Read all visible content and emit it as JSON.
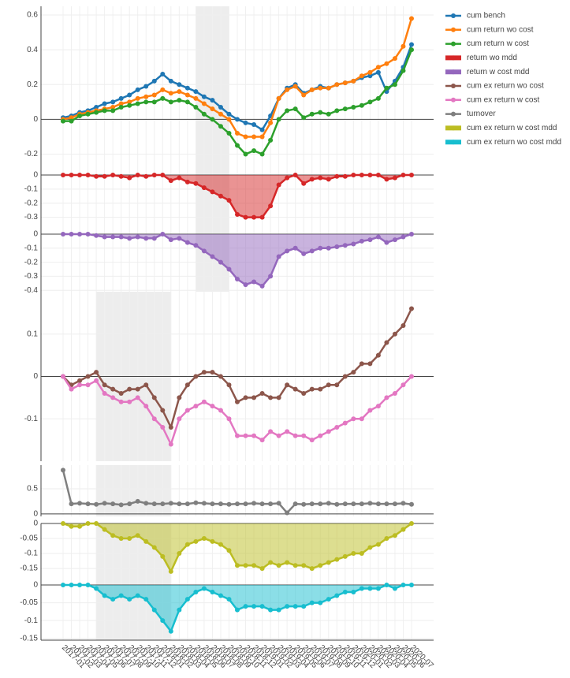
{
  "chart_data": [
    {
      "type": "line",
      "ylim": [
        -0.32,
        0.65
      ],
      "yticks": [
        -0.2,
        0,
        0.2,
        0.4,
        0.6
      ],
      "grid": true,
      "highlight": [
        "2018-05",
        "2018-09"
      ],
      "series": [
        {
          "name": "cum bench",
          "color": "#1f77b4",
          "values": [
            0.01,
            0.02,
            0.04,
            0.05,
            0.07,
            0.09,
            0.1,
            0.12,
            0.14,
            0.17,
            0.19,
            0.22,
            0.26,
            0.22,
            0.2,
            0.18,
            0.16,
            0.13,
            0.11,
            0.07,
            0.03,
            0.0,
            -0.02,
            -0.03,
            -0.06,
            0.02,
            0.12,
            0.18,
            0.2,
            0.15,
            0.17,
            0.19,
            0.18,
            0.2,
            0.21,
            0.22,
            0.24,
            0.25,
            0.27,
            0.16,
            0.22,
            0.3,
            0.43
          ]
        },
        {
          "name": "cum return wo cost",
          "color": "#ff7f0e",
          "values": [
            0.0,
            0.01,
            0.03,
            0.04,
            0.05,
            0.06,
            0.07,
            0.09,
            0.1,
            0.12,
            0.13,
            0.14,
            0.17,
            0.15,
            0.16,
            0.14,
            0.12,
            0.09,
            0.06,
            0.03,
            0.0,
            -0.08,
            -0.1,
            -0.1,
            -0.1,
            -0.02,
            0.12,
            0.17,
            0.19,
            0.14,
            0.17,
            0.18,
            0.18,
            0.2,
            0.21,
            0.22,
            0.25,
            0.27,
            0.3,
            0.32,
            0.35,
            0.42,
            0.58
          ]
        },
        {
          "name": "cum return w cost",
          "color": "#2ca02c",
          "values": [
            -0.01,
            -0.01,
            0.02,
            0.03,
            0.04,
            0.05,
            0.05,
            0.07,
            0.08,
            0.09,
            0.1,
            0.1,
            0.12,
            0.1,
            0.11,
            0.1,
            0.07,
            0.03,
            0.0,
            -0.04,
            -0.08,
            -0.15,
            -0.2,
            -0.18,
            -0.2,
            -0.12,
            0.0,
            0.05,
            0.06,
            0.01,
            0.03,
            0.04,
            0.03,
            0.05,
            0.06,
            0.07,
            0.08,
            0.1,
            0.12,
            0.18,
            0.2,
            0.28,
            0.4
          ]
        }
      ]
    },
    {
      "type": "area",
      "ylim": [
        -0.42,
        0
      ],
      "yticks": [
        0,
        -0.1,
        -0.2,
        -0.3
      ],
      "grid": true,
      "highlight": [
        "2018-05",
        "2018-09"
      ],
      "series": [
        {
          "name": "return wo mdd",
          "color": "#d62728",
          "values": [
            0,
            0,
            0,
            0,
            -0.01,
            -0.01,
            0,
            -0.01,
            -0.02,
            0,
            -0.01,
            0,
            0,
            -0.04,
            -0.02,
            -0.05,
            -0.06,
            -0.09,
            -0.12,
            -0.15,
            -0.18,
            -0.28,
            -0.3,
            -0.3,
            -0.3,
            -0.22,
            -0.07,
            -0.02,
            0,
            -0.06,
            -0.03,
            -0.02,
            -0.03,
            -0.01,
            -0.01,
            0,
            0,
            0,
            0,
            -0.03,
            -0.02,
            0,
            0
          ]
        }
      ]
    },
    {
      "type": "area",
      "ylim": [
        -0.41,
        0
      ],
      "yticks": [
        0,
        -0.1,
        -0.2,
        -0.3,
        -0.4
      ],
      "grid": true,
      "highlight": [
        "2018-05",
        "2018-09"
      ],
      "series": [
        {
          "name": "return w cost mdd",
          "color": "#9467bd",
          "values": [
            0,
            0,
            0,
            0,
            -0.01,
            -0.02,
            -0.02,
            -0.02,
            -0.03,
            -0.02,
            -0.03,
            -0.03,
            0,
            -0.04,
            -0.03,
            -0.06,
            -0.08,
            -0.12,
            -0.16,
            -0.2,
            -0.25,
            -0.32,
            -0.36,
            -0.34,
            -0.37,
            -0.3,
            -0.16,
            -0.12,
            -0.1,
            -0.14,
            -0.12,
            -0.1,
            -0.1,
            -0.09,
            -0.08,
            -0.07,
            -0.05,
            -0.04,
            -0.02,
            -0.06,
            -0.04,
            -0.02,
            0
          ]
        }
      ]
    },
    {
      "type": "line",
      "ylim": [
        -0.2,
        0.2
      ],
      "yticks": [
        -0.1,
        0,
        0.1
      ],
      "grid": true,
      "highlight": [
        "2017-05",
        "2018-02"
      ],
      "series": [
        {
          "name": "cum ex return wo cost",
          "color": "#8c564b",
          "values": [
            0,
            -0.02,
            -0.01,
            0.0,
            0.01,
            -0.02,
            -0.03,
            -0.04,
            -0.03,
            -0.03,
            -0.02,
            -0.05,
            -0.08,
            -0.12,
            -0.05,
            -0.02,
            0.0,
            0.01,
            0.01,
            0.0,
            -0.02,
            -0.06,
            -0.05,
            -0.05,
            -0.04,
            -0.05,
            -0.05,
            -0.02,
            -0.03,
            -0.04,
            -0.03,
            -0.03,
            -0.02,
            -0.02,
            0.0,
            0.01,
            0.03,
            0.03,
            0.05,
            0.08,
            0.1,
            0.12,
            0.16
          ]
        },
        {
          "name": "cum ex return w cost",
          "color": "#e377c2",
          "values": [
            0,
            -0.03,
            -0.02,
            -0.02,
            -0.01,
            -0.04,
            -0.05,
            -0.06,
            -0.06,
            -0.05,
            -0.07,
            -0.1,
            -0.12,
            -0.16,
            -0.1,
            -0.08,
            -0.07,
            -0.06,
            -0.07,
            -0.08,
            -0.1,
            -0.14,
            -0.14,
            -0.14,
            -0.15,
            -0.13,
            -0.14,
            -0.13,
            -0.14,
            -0.14,
            -0.15,
            -0.14,
            -0.13,
            -0.12,
            -0.11,
            -0.1,
            -0.1,
            -0.08,
            -0.07,
            -0.05,
            -0.04,
            -0.02,
            0.0
          ]
        }
      ]
    },
    {
      "type": "line",
      "ylim": [
        -0.05,
        0.97
      ],
      "yticks": [
        0,
        0.5
      ],
      "grid": true,
      "highlight": [
        "2017-05",
        "2018-02"
      ],
      "series": [
        {
          "name": "turnover",
          "color": "#7f7f7f",
          "values": [
            0.87,
            0.2,
            0.21,
            0.2,
            0.19,
            0.21,
            0.2,
            0.18,
            0.2,
            0.25,
            0.21,
            0.2,
            0.2,
            0.21,
            0.2,
            0.2,
            0.22,
            0.21,
            0.2,
            0.2,
            0.19,
            0.2,
            0.2,
            0.21,
            0.2,
            0.2,
            0.21,
            0.02,
            0.2,
            0.19,
            0.2,
            0.2,
            0.21,
            0.19,
            0.2,
            0.2,
            0.2,
            0.21,
            0.2,
            0.2,
            0.2,
            0.21,
            0.19
          ]
        }
      ]
    },
    {
      "type": "area",
      "ylim": [
        -0.205,
        0
      ],
      "yticks": [
        0,
        -0.05,
        -0.1,
        -0.15
      ],
      "grid": true,
      "highlight": [
        "2017-05",
        "2018-02"
      ],
      "series": [
        {
          "name": "cum ex return w cost mdd",
          "color": "#bcbd22",
          "values": [
            0,
            -0.01,
            -0.01,
            0,
            0,
            -0.02,
            -0.04,
            -0.05,
            -0.05,
            -0.04,
            -0.06,
            -0.08,
            -0.11,
            -0.16,
            -0.1,
            -0.07,
            -0.06,
            -0.05,
            -0.06,
            -0.07,
            -0.09,
            -0.14,
            -0.14,
            -0.14,
            -0.15,
            -0.13,
            -0.14,
            -0.13,
            -0.14,
            -0.14,
            -0.15,
            -0.14,
            -0.13,
            -0.12,
            -0.11,
            -0.1,
            -0.1,
            -0.08,
            -0.07,
            -0.05,
            -0.04,
            -0.02,
            0
          ]
        }
      ]
    },
    {
      "type": "area",
      "ylim": [
        -0.155,
        0
      ],
      "yticks": [
        0,
        -0.05,
        -0.1,
        -0.15
      ],
      "grid": true,
      "highlight": [
        "2017-05",
        "2018-02"
      ],
      "categories": [
        "2017-01",
        "2017-02",
        "2017-03",
        "2017-04",
        "2017-05",
        "2017-06",
        "2017-07",
        "2017-08",
        "2017-09",
        "2017-10",
        "2017-11",
        "2017-12",
        "2018-01",
        "2018-02",
        "2018-03",
        "2018-04",
        "2018-05",
        "2018-06",
        "2018-07",
        "2018-08",
        "2018-09",
        "2018-10",
        "2018-11",
        "2018-12",
        "2019-01",
        "2019-02",
        "2019-03",
        "2019-04",
        "2019-05",
        "2019-06",
        "2019-07",
        "2019-08",
        "2019-09",
        "2019-10",
        "2019-11",
        "2019-12",
        "2020-01",
        "2020-02",
        "2020-03",
        "2020-04",
        "2020-05",
        "2020-06",
        "2020-07"
      ],
      "series": [
        {
          "name": "cum ex return wo cost mdd",
          "color": "#17becf",
          "values": [
            0,
            0,
            0,
            0,
            -0.01,
            -0.03,
            -0.04,
            -0.03,
            -0.04,
            -0.03,
            -0.04,
            -0.07,
            -0.1,
            -0.13,
            -0.07,
            -0.04,
            -0.02,
            -0.01,
            -0.02,
            -0.03,
            -0.04,
            -0.07,
            -0.06,
            -0.06,
            -0.06,
            -0.07,
            -0.07,
            -0.06,
            -0.06,
            -0.06,
            -0.05,
            -0.05,
            -0.04,
            -0.03,
            -0.02,
            -0.02,
            -0.01,
            -0.01,
            -0.01,
            0,
            -0.01,
            0,
            0
          ]
        }
      ]
    }
  ]
}
